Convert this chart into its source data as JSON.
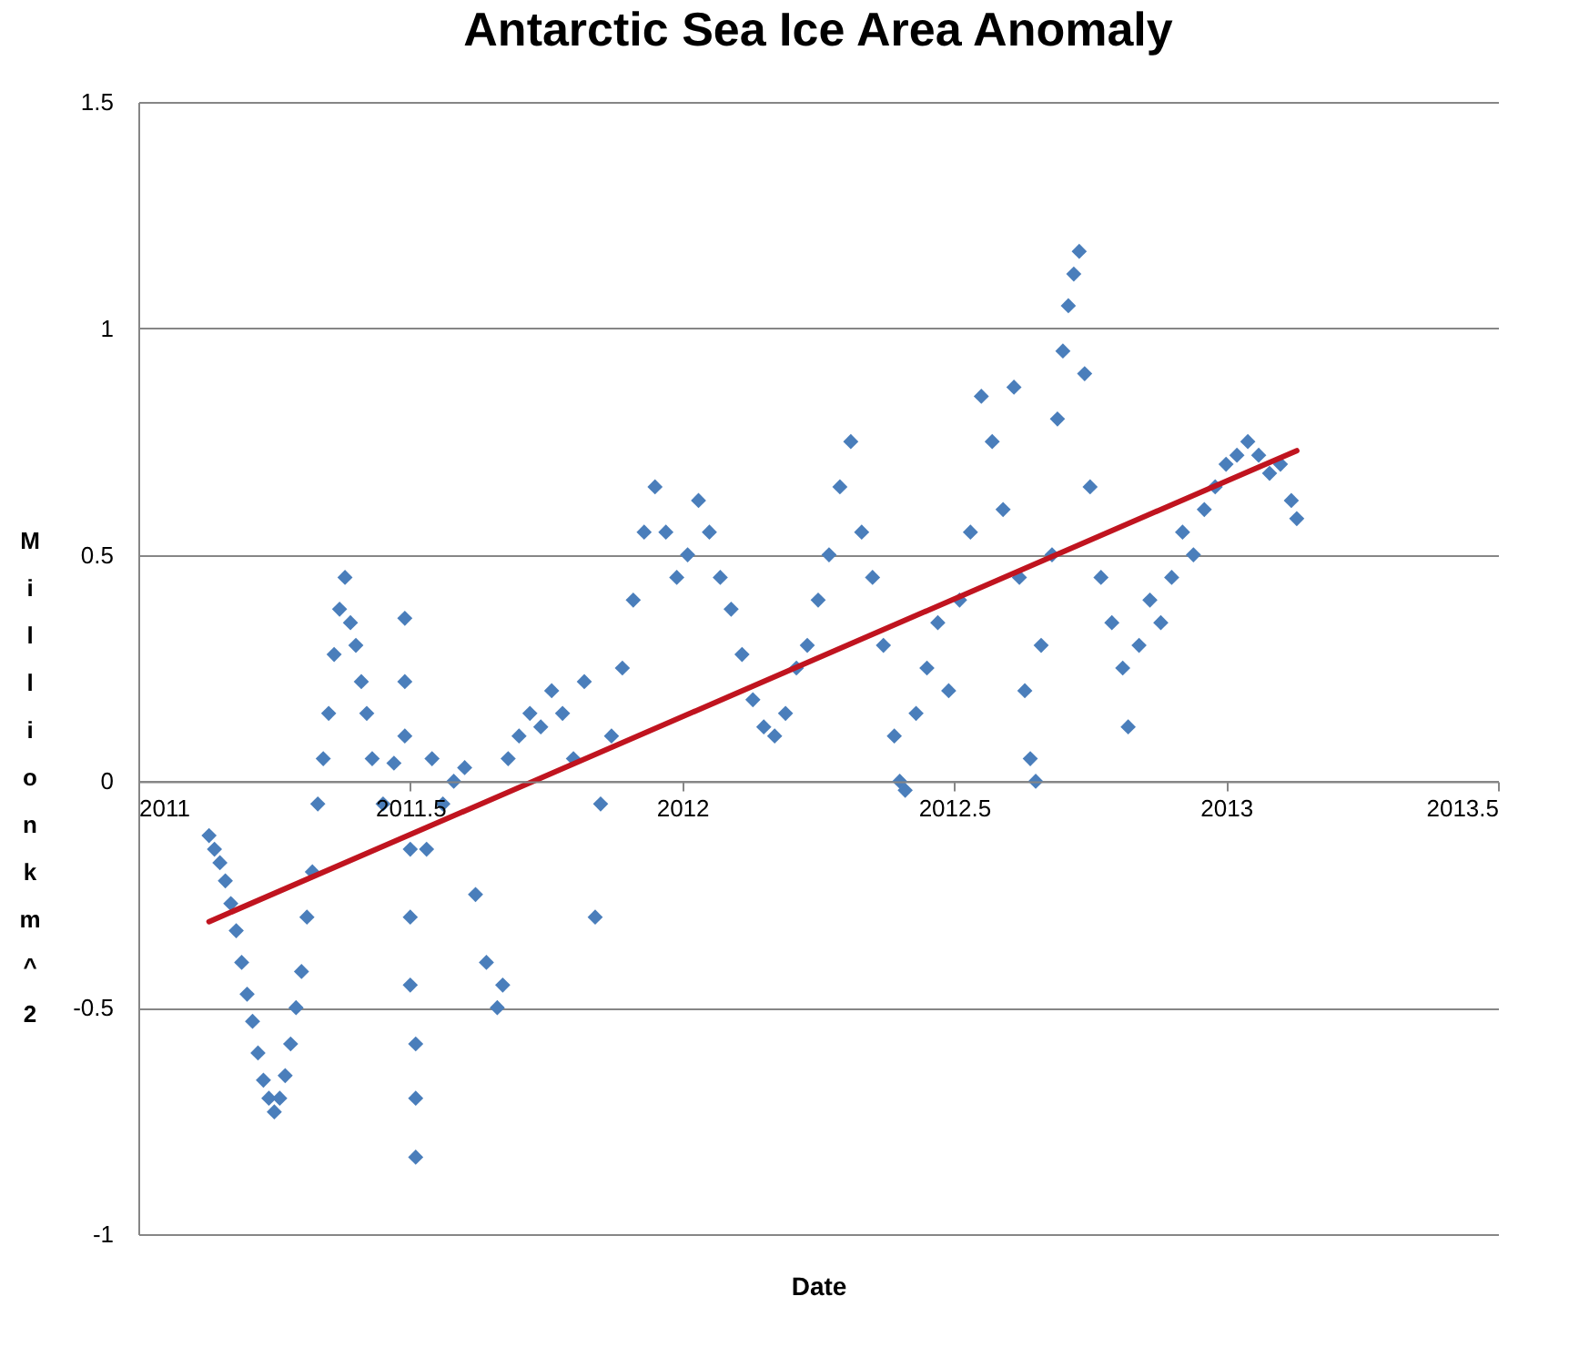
{
  "chart_data": {
    "type": "scatter",
    "title": "Antarctic Sea Ice Area Anomaly",
    "xlabel": "Date",
    "ylabel": "Million km^2",
    "xlim": [
      2011,
      2013.5
    ],
    "xticks": [
      2011,
      2011.5,
      2012,
      2012.5,
      2013,
      2013.5
    ],
    "ylim": [
      -1,
      1.5
    ],
    "yticks": [
      -1,
      -0.5,
      0,
      0.5,
      1,
      1.5
    ],
    "grid": "y",
    "marker": "diamond",
    "series": [
      {
        "color": "#4a7ebb",
        "x": [
          2011.13,
          2011.14,
          2011.15,
          2011.16,
          2011.17,
          2011.18,
          2011.19,
          2011.2,
          2011.21,
          2011.22,
          2011.23,
          2011.24,
          2011.25,
          2011.26,
          2011.27,
          2011.28,
          2011.29,
          2011.3,
          2011.31,
          2011.32,
          2011.33,
          2011.34,
          2011.35,
          2011.36,
          2011.37,
          2011.38,
          2011.39,
          2011.4,
          2011.41,
          2011.42,
          2011.43,
          2011.45,
          2011.47,
          2011.49,
          2011.49,
          2011.49,
          2011.5,
          2011.5,
          2011.5,
          2011.51,
          2011.51,
          2011.51,
          2011.53,
          2011.54,
          2011.56,
          2011.58,
          2011.6,
          2011.62,
          2011.64,
          2011.66,
          2011.67,
          2011.68,
          2011.7,
          2011.72,
          2011.74,
          2011.76,
          2011.78,
          2011.8,
          2011.82,
          2011.84,
          2011.85,
          2011.87,
          2011.89,
          2011.91,
          2011.93,
          2011.95,
          2011.97,
          2011.99,
          2012.01,
          2012.03,
          2012.05,
          2012.07,
          2012.09,
          2012.11,
          2012.13,
          2012.15,
          2012.17,
          2012.19,
          2012.21,
          2012.23,
          2012.25,
          2012.27,
          2012.29,
          2012.31,
          2012.33,
          2012.35,
          2012.37,
          2012.39,
          2012.4,
          2012.41,
          2012.43,
          2012.45,
          2012.47,
          2012.49,
          2012.51,
          2012.53,
          2012.55,
          2012.57,
          2012.59,
          2012.61,
          2012.62,
          2012.63,
          2012.64,
          2012.65,
          2012.66,
          2012.68,
          2012.69,
          2012.7,
          2012.71,
          2012.72,
          2012.73,
          2012.74,
          2012.75,
          2012.77,
          2012.79,
          2012.81,
          2012.82,
          2012.84,
          2012.86,
          2012.88,
          2012.9,
          2012.92,
          2012.94,
          2012.96,
          2012.98,
          2013,
          2013.02,
          2013.04,
          2013.06,
          2013.08,
          2013.1,
          2013.12,
          2013.13
        ],
        "values": [
          -0.12,
          -0.15,
          -0.18,
          -0.22,
          -0.27,
          -0.33,
          -0.4,
          -0.47,
          -0.53,
          -0.6,
          -0.66,
          -0.7,
          -0.73,
          -0.7,
          -0.65,
          -0.58,
          -0.5,
          -0.42,
          -0.3,
          -0.2,
          -0.05,
          0.05,
          0.15,
          0.28,
          0.38,
          0.45,
          0.35,
          0.3,
          0.22,
          0.15,
          0.05,
          -0.05,
          0.04,
          0.36,
          0.22,
          0.1,
          -0.15,
          -0.3,
          -0.45,
          -0.58,
          -0.7,
          -0.83,
          -0.15,
          0.05,
          -0.05,
          0,
          0.03,
          -0.25,
          -0.4,
          -0.5,
          -0.45,
          0.05,
          0.1,
          0.15,
          0.12,
          0.2,
          0.15,
          0.05,
          0.22,
          -0.3,
          -0.05,
          0.1,
          0.25,
          0.4,
          0.55,
          0.65,
          0.55,
          0.45,
          0.5,
          0.62,
          0.55,
          0.45,
          0.38,
          0.28,
          0.18,
          0.12,
          0.1,
          0.15,
          0.25,
          0.3,
          0.4,
          0.5,
          0.65,
          0.75,
          0.55,
          0.45,
          0.3,
          0.1,
          0,
          -0.02,
          0.15,
          0.25,
          0.35,
          0.2,
          0.4,
          0.55,
          0.85,
          0.75,
          0.6,
          0.87,
          0.45,
          0.2,
          0.05,
          0,
          0.3,
          0.5,
          0.8,
          0.95,
          1.05,
          1.12,
          1.17,
          0.9,
          0.65,
          0.45,
          0.35,
          0.25,
          0.12,
          0.3,
          0.4,
          0.35,
          0.45,
          0.55,
          0.5,
          0.6,
          0.65,
          0.7,
          0.72,
          0.75,
          0.72,
          0.68,
          0.7,
          0.62,
          0.58
        ]
      },
      {
        "type": "line",
        "marker": "none",
        "color": "#c0141f",
        "x": [
          2011.13,
          2013.13
        ],
        "values": [
          -0.31,
          0.73
        ]
      }
    ]
  }
}
